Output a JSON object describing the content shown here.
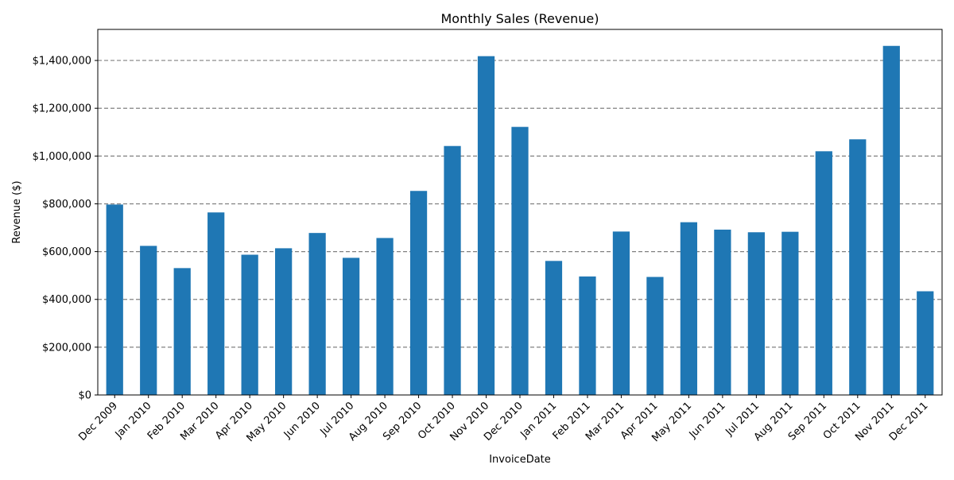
{
  "chart_data": {
    "type": "bar",
    "title": "Monthly Sales (Revenue)",
    "xlabel": "InvoiceDate",
    "ylabel": "Revenue ($)",
    "categories": [
      "Dec 2009",
      "Jan 2010",
      "Feb 2010",
      "Mar 2010",
      "Apr 2010",
      "May 2010",
      "Jun 2010",
      "Jul 2010",
      "Aug 2010",
      "Sep 2010",
      "Oct 2010",
      "Nov 2010",
      "Dec 2010",
      "Jan 2011",
      "Feb 2011",
      "Mar 2011",
      "Apr 2011",
      "May 2011",
      "Jun 2011",
      "Jul 2011",
      "Aug 2011",
      "Sep 2011",
      "Oct 2011",
      "Nov 2011",
      "Dec 2011"
    ],
    "values": [
      797000,
      624000,
      531000,
      764000,
      587000,
      614000,
      678000,
      574000,
      657000,
      854000,
      1042000,
      1418000,
      1122000,
      561000,
      496000,
      684000,
      494000,
      723000,
      692000,
      681000,
      683000,
      1020000,
      1070000,
      1461000,
      434000
    ],
    "ylim": [
      0,
      1530000
    ],
    "yticks": [
      0,
      200000,
      400000,
      600000,
      800000,
      1000000,
      1200000,
      1400000
    ],
    "ytick_labels": [
      "$0",
      "$200,000",
      "$400,000",
      "$600,000",
      "$800,000",
      "$1,000,000",
      "$1,200,000",
      "$1,400,000"
    ],
    "grid": "horizontal dashed",
    "legend": "none",
    "colors": {
      "bar": "#1f77b4",
      "grid": "#808080",
      "axis": "#000000"
    }
  }
}
